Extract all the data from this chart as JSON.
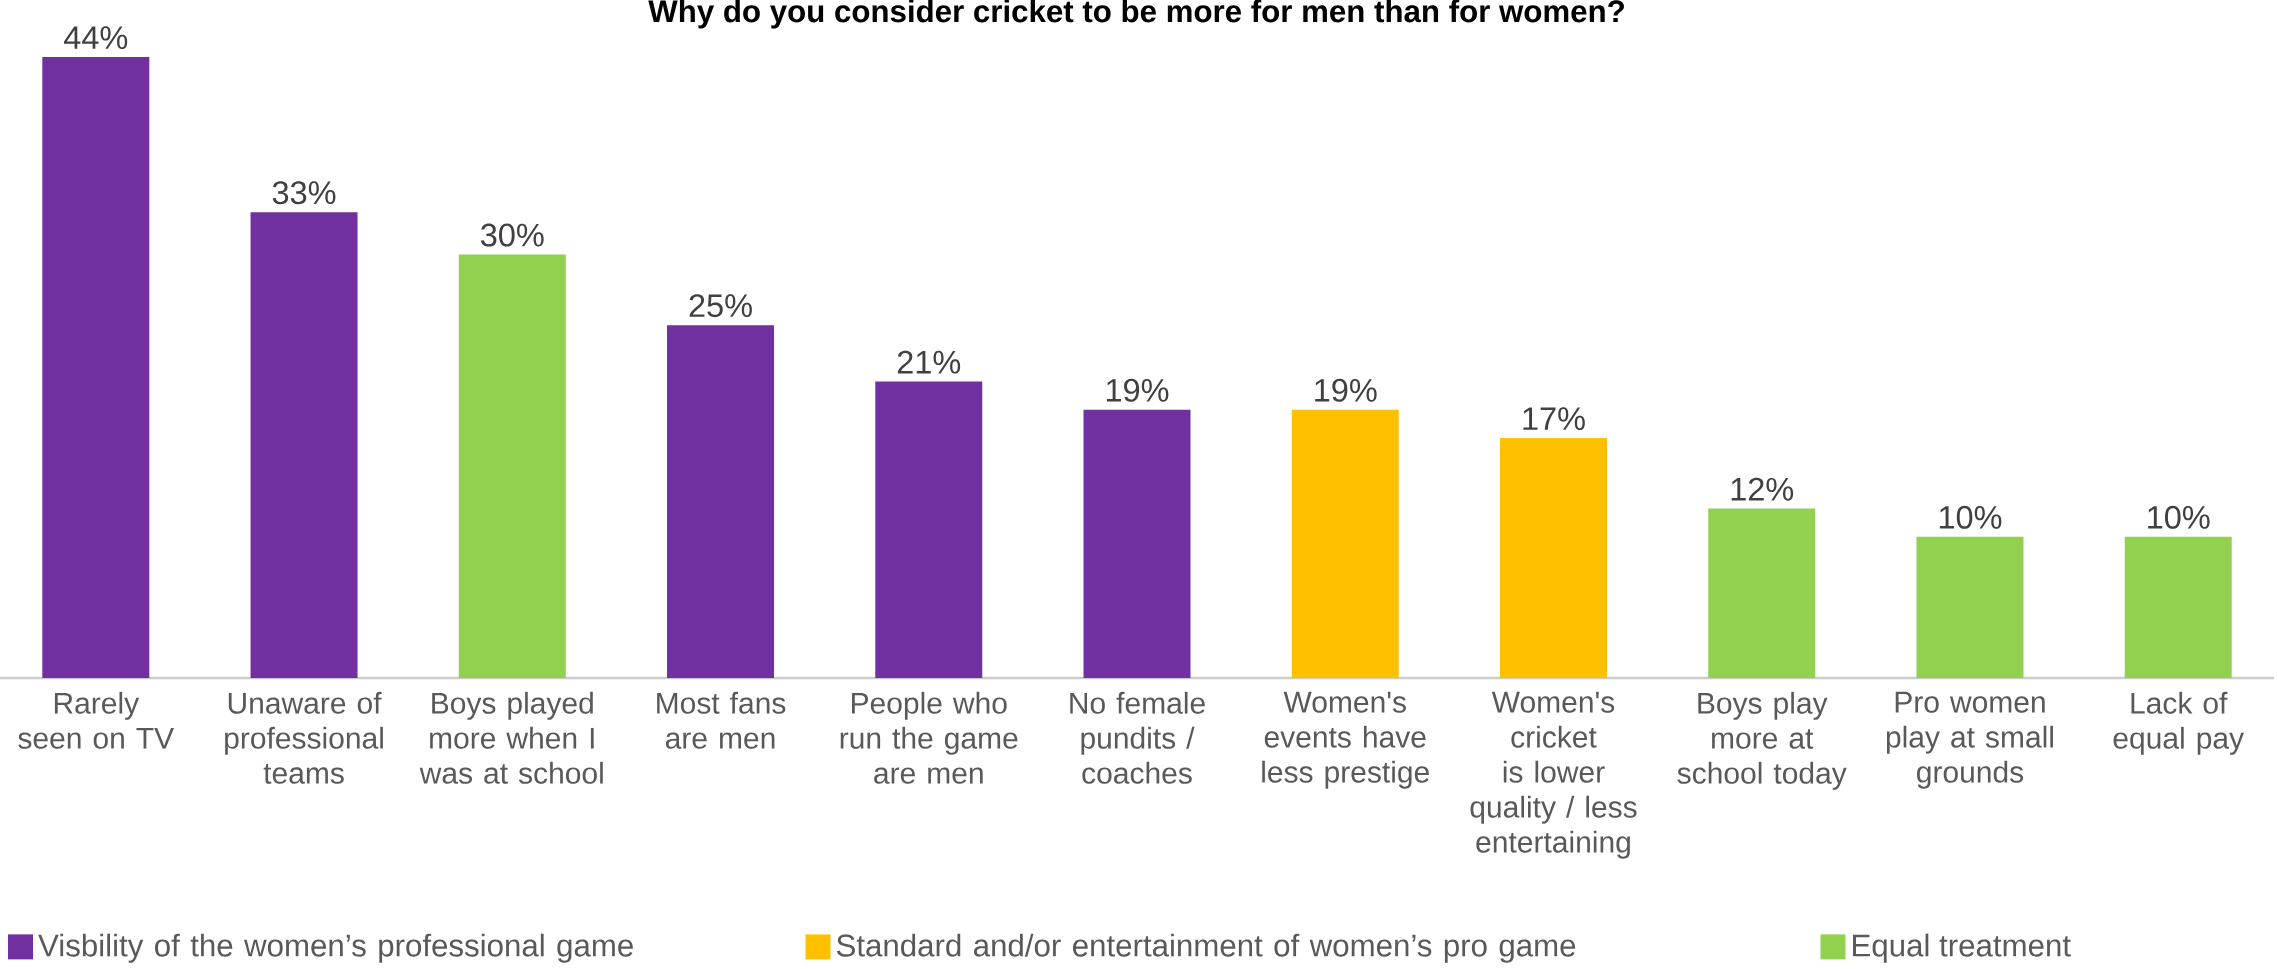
{
  "chart_data": {
    "type": "bar",
    "title": "Why do you consider cricket to be more for men than for women?",
    "categories": [
      "Rarely seen on TV",
      "Unaware of professional teams",
      "Boys played more when I was at school",
      "Most fans are men",
      "People who run the game are men",
      "No female pundits / coaches",
      "Women's events have less prestige",
      "Women's cricket is lower quality / less entertaining",
      "Boys play more at school today",
      "Pro women play at small grounds",
      "Lack of equal pay"
    ],
    "series": [
      {
        "name": "Visbility of the women’s professional game",
        "color": "#7030a0",
        "values": [
          44,
          33,
          null,
          25,
          21,
          19,
          null,
          null,
          null,
          null,
          null
        ],
        "value_labels": [
          "44%",
          "33%",
          null,
          "25%",
          "21%",
          "19%",
          null,
          null,
          null,
          null,
          null
        ]
      },
      {
        "name": "Standard and/or entertainment of women’s pro game",
        "color": "#ffc000",
        "values": [
          null,
          null,
          null,
          null,
          null,
          null,
          19,
          17,
          null,
          null,
          null
        ],
        "value_labels": [
          null,
          null,
          null,
          null,
          null,
          null,
          "19%",
          "17%",
          null,
          null,
          null
        ]
      },
      {
        "name": "Equal treatment",
        "color": "#92d050",
        "values": [
          null,
          null,
          30,
          null,
          null,
          null,
          null,
          null,
          12,
          10,
          10
        ],
        "value_labels": [
          null,
          null,
          "30%",
          null,
          null,
          null,
          null,
          null,
          "12%",
          "10%",
          "10%"
        ]
      }
    ],
    "legend": "bottom"
  }
}
